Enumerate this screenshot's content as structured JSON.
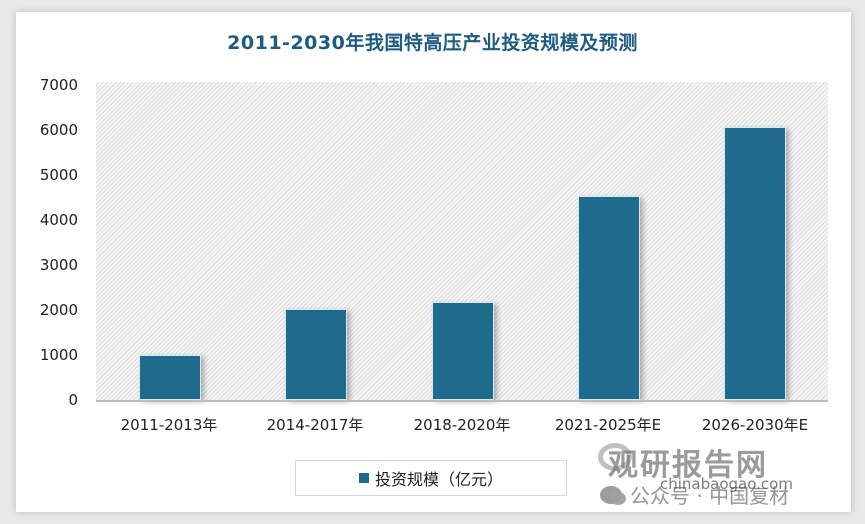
{
  "chart_data": {
    "type": "bar",
    "title": "2011-2030年我国特高压产业投资规模及预测",
    "categories": [
      "2011-2013年",
      "2014-2017年",
      "2018-2020年",
      "2021-2025年E",
      "2026-2030年E"
    ],
    "series": [
      {
        "name": "投资规模（亿元）",
        "values": [
          1000,
          2000,
          2150,
          4500,
          6000
        ]
      }
    ],
    "xlabel": "",
    "ylabel": "",
    "ylim": [
      0,
      7000
    ],
    "yticks": [
      "0",
      "1000",
      "2000",
      "3000",
      "4000",
      "5000",
      "6000",
      "7000"
    ],
    "grid": false,
    "legend_position": "bottom",
    "bar_color": "#1f6b8e"
  },
  "watermark": {
    "logo_text": "观研报告网",
    "url": "chinabaogao.com",
    "wechat_text": "公众号 · 中国复材"
  }
}
